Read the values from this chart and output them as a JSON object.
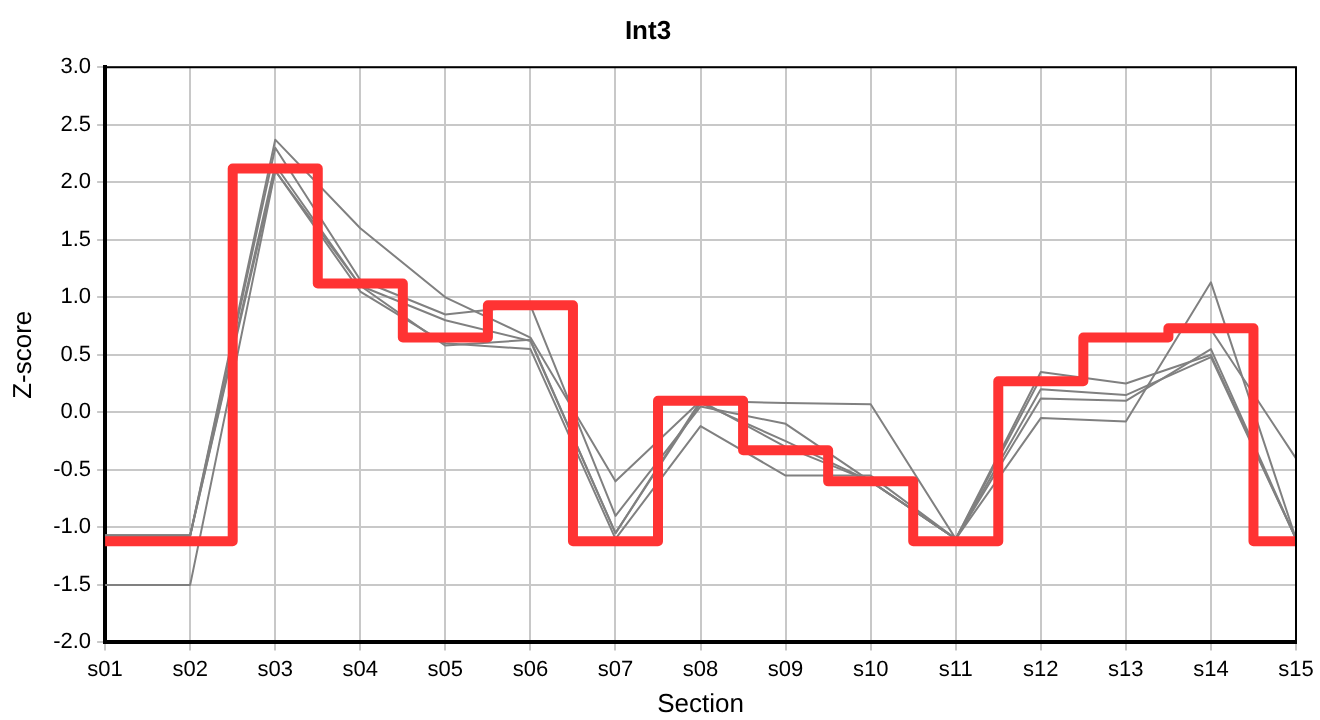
{
  "chart_data": {
    "type": "line",
    "title": "Int3",
    "xlabel": "Section",
    "ylabel": "Z-score",
    "categories": [
      "s01",
      "s02",
      "s03",
      "s04",
      "s05",
      "s06",
      "s07",
      "s08",
      "s09",
      "s10",
      "s11",
      "s12",
      "s13",
      "s14",
      "s15"
    ],
    "ylim": [
      -2,
      3
    ],
    "yticks": [
      {
        "value": -2,
        "label": "-2.0"
      },
      {
        "value": -1.5,
        "label": "-1.5"
      },
      {
        "value": -1,
        "label": "-1.0"
      },
      {
        "value": -0.5,
        "label": "-0.5"
      },
      {
        "value": 0,
        "label": "0.0"
      },
      {
        "value": 0.5,
        "label": "0.5"
      },
      {
        "value": 1,
        "label": "1.0"
      },
      {
        "value": 1.5,
        "label": "1.5"
      },
      {
        "value": 2,
        "label": "2.0"
      },
      {
        "value": 2.5,
        "label": "2.5"
      },
      {
        "value": 3,
        "label": "3.0"
      }
    ],
    "grid": true,
    "legend": false,
    "marker": "none",
    "line_style": "solid",
    "series": [
      {
        "color": "#808080",
        "values": [
          -1.07,
          -1.07,
          2.37,
          1.6,
          1.0,
          0.65,
          -0.6,
          0.1,
          0.08,
          0.07,
          -1.1,
          0.3,
          null,
          0.72,
          -0.4
        ]
      },
      {
        "color": "#808080",
        "values": [
          -1.07,
          -1.07,
          2.3,
          1.15,
          0.85,
          0.93,
          -0.9,
          0.05,
          -0.1,
          -0.6,
          -1.1,
          0.35,
          0.25,
          0.5,
          -1.1
        ]
      },
      {
        "color": "#808080",
        "values": [
          -1.07,
          -1.07,
          2.15,
          1.1,
          0.8,
          0.62,
          -1.05,
          0.1,
          -0.3,
          -0.6,
          -1.1,
          0.12,
          0.1,
          0.55,
          -1.1
        ]
      },
      {
        "color": "#808080",
        "values": [
          -1.5,
          -1.5,
          2.1,
          1.05,
          0.6,
          0.55,
          -1.1,
          -0.12,
          -0.55,
          -0.55,
          -1.1,
          -0.05,
          -0.08,
          1.13,
          -1.1
        ]
      },
      {
        "color": "#808080",
        "values": [
          -1.07,
          -1.07,
          2.1,
          1.1,
          0.58,
          0.63,
          -1.05,
          0.08,
          -0.25,
          -0.6,
          -1.1,
          0.2,
          0.15,
          0.48,
          -1.1
        ]
      },
      {
        "type": "step",
        "color": "#ff3333",
        "values": [
          -1.12,
          -1.12,
          2.12,
          1.12,
          0.65,
          0.93,
          -1.12,
          0.1,
          -0.33,
          -0.6,
          -1.12,
          0.27,
          0.65,
          0.73,
          -1.12
        ]
      }
    ]
  }
}
